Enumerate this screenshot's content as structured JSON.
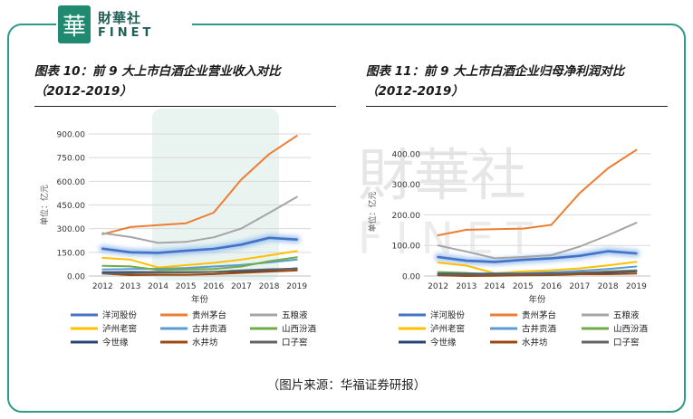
{
  "logo": {
    "mark": "華",
    "name_cn": "財華社",
    "name_en": "FINET"
  },
  "watermark": {
    "text_cn": "財華社",
    "text_en": "FINET"
  },
  "source_text": "（图片来源：华福证券研报）",
  "chart_data": [
    {
      "type": "line",
      "title_line1": "图表 10：前 9 大上市白酒企业营业收入对比",
      "title_line2": "（2012-2019）",
      "xlabel": "年份",
      "ylabel": "单位：亿元",
      "categories": [
        "2012",
        "2013",
        "2014",
        "2015",
        "2016",
        "2017",
        "2018",
        "2019"
      ],
      "yticks": [
        "0.00",
        "150.00",
        "300.00",
        "450.00",
        "600.00",
        "750.00",
        "900.00"
      ],
      "ylim": [
        0,
        900
      ],
      "series": [
        {
          "name": "洋河股份",
          "color": "#4472c4",
          "glow": true,
          "values": [
            173,
            150,
            147,
            160,
            172,
            199,
            242,
            231
          ]
        },
        {
          "name": "贵州茅台",
          "color": "#ed7d31",
          "values": [
            265,
            310,
            322,
            334,
            401,
            611,
            772,
            888
          ]
        },
        {
          "name": "五粮液",
          "color": "#a5a5a5",
          "values": [
            272,
            247,
            210,
            216,
            245,
            301,
            400,
            501
          ]
        },
        {
          "name": "泸州老窖",
          "color": "#ffc000",
          "values": [
            115,
            104,
            54,
            69,
            83,
            104,
            130,
            158
          ]
        },
        {
          "name": "古井贡酒",
          "color": "#5b9bd5",
          "values": [
            41,
            44,
            46,
            51,
            60,
            70,
            86,
            104
          ]
        },
        {
          "name": "山西汾酒",
          "color": "#70ad47",
          "values": [
            65,
            61,
            39,
            41,
            44,
            60,
            94,
            119
          ]
        },
        {
          "name": "今世缘",
          "color": "#264478",
          "values": [
            24,
            25,
            25,
            25,
            26,
            30,
            37,
            49
          ]
        },
        {
          "name": "水井坊",
          "color": "#9e480e",
          "values": [
            16,
            6,
            8,
            8,
            12,
            20,
            28,
            35
          ]
        },
        {
          "name": "口子窖",
          "color": "#636363",
          "values": [
            16,
            17,
            21,
            23,
            26,
            36,
            43,
            46
          ]
        }
      ]
    },
    {
      "type": "line",
      "title_line1": "图表 11：前 9 大上市白酒企业归母净利润对比",
      "title_line2": "（2012-2019）",
      "xlabel": "年份",
      "ylabel": "单位：亿元",
      "categories": [
        "2012",
        "2013",
        "2014",
        "2015",
        "2016",
        "2017",
        "2018",
        "2019"
      ],
      "yticks": [
        "0.00",
        "100.00",
        "200.00",
        "300.00",
        "400.00"
      ],
      "ylim": [
        0,
        420
      ],
      "series": [
        {
          "name": "洋河股份",
          "color": "#4472c4",
          "glow": true,
          "values": [
            62,
            50,
            46,
            53,
            58,
            66,
            81,
            74
          ]
        },
        {
          "name": "贵州茅台",
          "color": "#ed7d31",
          "values": [
            133,
            151,
            153,
            155,
            167,
            271,
            352,
            412
          ]
        },
        {
          "name": "五粮液",
          "color": "#a5a5a5",
          "values": [
            100,
            80,
            58,
            62,
            68,
            96,
            133,
            174
          ]
        },
        {
          "name": "泸州老窖",
          "color": "#ffc000",
          "values": [
            44,
            34,
            9,
            15,
            19,
            25,
            35,
            46
          ]
        },
        {
          "name": "古井贡酒",
          "color": "#5b9bd5",
          "values": [
            7,
            8,
            8,
            9,
            12,
            17,
            23,
            31
          ]
        },
        {
          "name": "山西汾酒",
          "color": "#70ad47",
          "values": [
            13,
            10,
            4,
            5,
            6,
            9,
            15,
            19
          ]
        },
        {
          "name": "今世缘",
          "color": "#264478",
          "values": [
            7,
            7,
            7,
            7,
            8,
            9,
            11,
            15
          ]
        },
        {
          "name": "水井坊",
          "color": "#9e480e",
          "values": [
            2,
            0,
            1,
            2,
            3,
            6,
            6,
            8
          ]
        },
        {
          "name": "口子窖",
          "color": "#636363",
          "values": [
            5,
            5,
            5,
            6,
            7,
            11,
            14,
            17
          ]
        }
      ]
    }
  ]
}
